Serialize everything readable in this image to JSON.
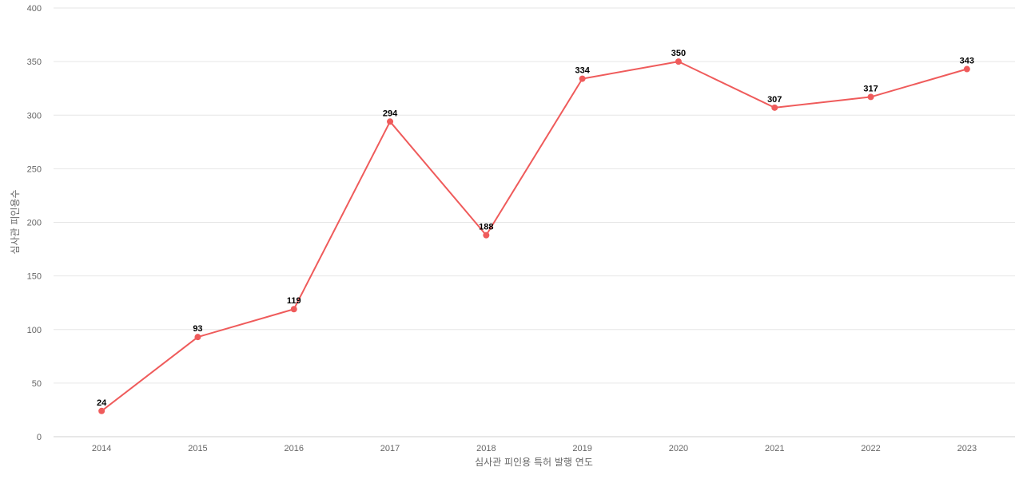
{
  "chart_data": {
    "type": "line",
    "title": "",
    "xlabel": "심사관 피인용 특허 발행 연도",
    "ylabel": "심사관 피인용수",
    "categories": [
      "2014",
      "2015",
      "2016",
      "2017",
      "2018",
      "2019",
      "2020",
      "2021",
      "2022",
      "2023"
    ],
    "series": [
      {
        "values": [
          24,
          93,
          119,
          294,
          188,
          334,
          350,
          307,
          317,
          343
        ],
        "color": "#ef5b5b"
      }
    ],
    "ylim": [
      0,
      400
    ],
    "yticks": [
      0,
      50,
      100,
      150,
      200,
      250,
      300,
      350,
      400
    ],
    "grid": true,
    "data_labels": true,
    "legend": "none"
  }
}
